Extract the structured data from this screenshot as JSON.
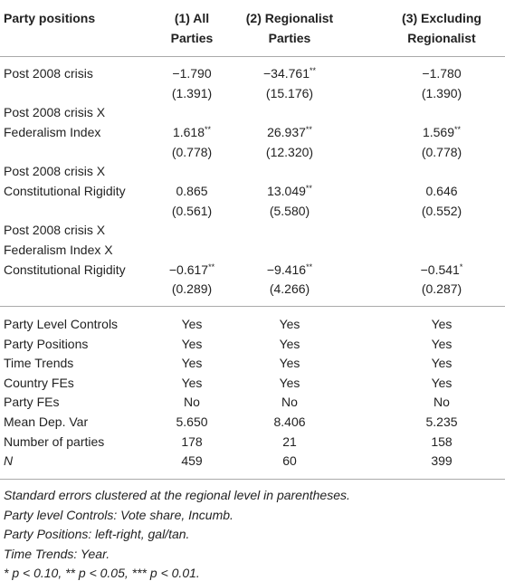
{
  "header": {
    "label": "Party positions",
    "columns": [
      [
        "(1) All",
        "Parties"
      ],
      [
        "(2) Regionalist",
        "Parties"
      ],
      [
        "(3) Excluding",
        "Regionalist"
      ]
    ]
  },
  "coefficients": [
    {
      "label": [
        "Post 2008 crisis"
      ],
      "cells": [
        {
          "estimate": "−1.790",
          "se": "(1.391)"
        },
        {
          "estimate": "−34.761",
          "stars": "**",
          "se": "(15.176)"
        },
        {
          "estimate": "−1.780",
          "se": "(1.390)"
        }
      ]
    },
    {
      "label": [
        "Post 2008 crisis X",
        "Federalism Index"
      ],
      "cells": [
        {
          "estimate": "1.618",
          "stars": "**",
          "se": "(0.778)"
        },
        {
          "estimate": "26.937",
          "stars": "**",
          "se": "(12.320)"
        },
        {
          "estimate": "1.569",
          "stars": "**",
          "se": "(0.778)"
        }
      ]
    },
    {
      "label": [
        "Post 2008 crisis X",
        "Constitutional Rigidity"
      ],
      "cells": [
        {
          "estimate": "0.865",
          "se": "(0.561)"
        },
        {
          "estimate": "13.049",
          "stars": "**",
          "se": "(5.580)"
        },
        {
          "estimate": "0.646",
          "se": "(0.552)"
        }
      ]
    },
    {
      "label": [
        "Post 2008 crisis X",
        "Federalism Index X",
        "Constitutional Rigidity"
      ],
      "cells": [
        {
          "estimate": "−0.617",
          "stars": "**",
          "se": "(0.289)"
        },
        {
          "estimate": "−9.416",
          "stars": "**",
          "se": "(4.266)"
        },
        {
          "estimate": "−0.541",
          "stars": "*",
          "se": "(0.287)"
        }
      ]
    }
  ],
  "controls": [
    {
      "label": "Party Level Controls",
      "cells": [
        "Yes",
        "Yes",
        "Yes"
      ]
    },
    {
      "label": "Party Positions",
      "cells": [
        "Yes",
        "Yes",
        "Yes"
      ]
    },
    {
      "label": "Time Trends",
      "cells": [
        "Yes",
        "Yes",
        "Yes"
      ]
    },
    {
      "label": "Country FEs",
      "cells": [
        "Yes",
        "Yes",
        "Yes"
      ]
    },
    {
      "label": "Party FEs",
      "cells": [
        "No",
        "No",
        "No"
      ]
    },
    {
      "label": "Mean Dep. Var",
      "cells": [
        "5.650",
        "8.406",
        "5.235"
      ]
    },
    {
      "label": "Number of parties",
      "cells": [
        "178",
        "21",
        "158"
      ]
    },
    {
      "label": "N",
      "cells": [
        "459",
        "60",
        "399"
      ]
    }
  ],
  "notes": [
    "Standard errors clustered at the regional level in parentheses.",
    "Party level Controls: Vote share, Incumb.",
    "Party Positions: left-right, gal/tan.",
    "Time Trends: Year.",
    "* p < 0.10, ** p < 0.05, *** p < 0.01."
  ]
}
